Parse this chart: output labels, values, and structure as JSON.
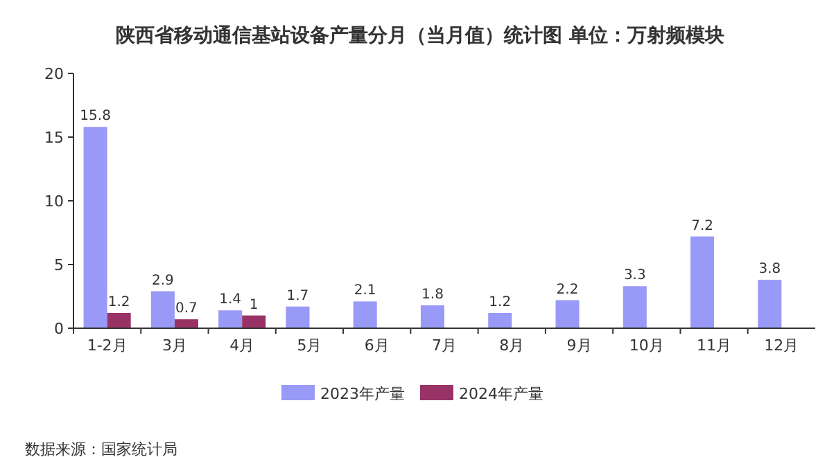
{
  "chart_data": {
    "type": "bar",
    "title": "陕西省移动通信基站设备产量分月（当月值）统计图 单位：万射频模块",
    "categories": [
      "1-2月",
      "3月",
      "4月",
      "5月",
      "6月",
      "7月",
      "8月",
      "9月",
      "10月",
      "11月",
      "12月"
    ],
    "series": [
      {
        "name": "2023年产量",
        "color": "#9999f7",
        "values": [
          15.8,
          2.9,
          1.4,
          1.7,
          2.1,
          1.8,
          1.2,
          2.2,
          3.3,
          7.2,
          3.8
        ]
      },
      {
        "name": "2024年产量",
        "color": "#993366",
        "values": [
          1.2,
          0.7,
          1,
          null,
          null,
          null,
          null,
          null,
          null,
          null,
          null
        ]
      }
    ],
    "ylim": [
      0,
      20
    ],
    "yticks": [
      0,
      5,
      10,
      15,
      20
    ],
    "grid": false,
    "legend": "bottom",
    "data_labels": true,
    "annotations": [
      "数据来源：国家统计局"
    ]
  }
}
